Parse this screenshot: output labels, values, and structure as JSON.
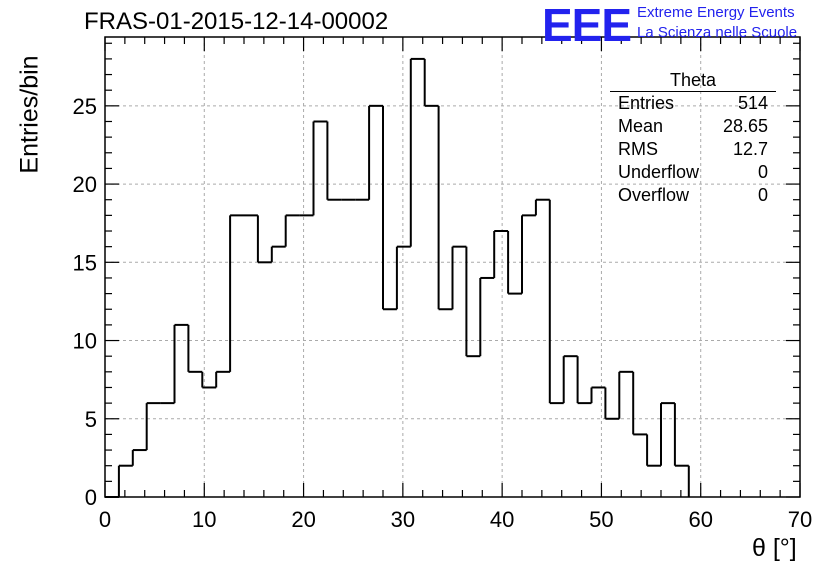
{
  "title": "FRAS-01-2015-12-14-00002",
  "logo": {
    "mark": "EEE",
    "line1": "Extreme Energy Events",
    "line2": "La Scienza nelle Scuole",
    "color": "#2222ee"
  },
  "stats": {
    "title": "Theta",
    "rows": [
      {
        "label": "Entries",
        "value": "514"
      },
      {
        "label": "Mean",
        "value": "28.65"
      },
      {
        "label": "RMS",
        "value": "12.7"
      },
      {
        "label": "Underflow",
        "value": "0"
      },
      {
        "label": "Overflow",
        "value": "0"
      }
    ]
  },
  "chart_data": {
    "type": "bar",
    "histogram": true,
    "title": "FRAS-01-2015-12-14-00002",
    "xlabel": "θ [°]",
    "ylabel": "Entries/bin",
    "xlim": [
      0,
      70
    ],
    "ylim": [
      0,
      29.4
    ],
    "xticks": [
      0,
      10,
      20,
      30,
      40,
      50,
      60,
      70
    ],
    "yticks": [
      0,
      5,
      10,
      15,
      20,
      25
    ],
    "grid": true,
    "line_color": "#000000",
    "bins": {
      "edges": [
        0,
        1.4,
        2.8,
        4.2,
        5.6,
        7.0,
        8.4,
        9.8,
        11.2,
        12.6,
        14.0,
        15.4,
        16.8,
        18.2,
        19.6,
        21.0,
        22.4,
        23.8,
        25.2,
        26.6,
        28.0,
        29.4,
        30.8,
        32.2,
        33.6,
        35.0,
        36.4,
        37.8,
        39.2,
        40.6,
        42.0,
        43.4,
        44.8,
        46.2,
        47.6,
        49.0,
        50.4,
        51.8,
        53.2,
        54.6,
        56.0,
        57.4,
        58.8
      ],
      "values": [
        0,
        2,
        3,
        6,
        6,
        11,
        8,
        7,
        8,
        18,
        18,
        15,
        16,
        18,
        18,
        24,
        19,
        19,
        19,
        25,
        12,
        16,
        28,
        25,
        12,
        16,
        9,
        14,
        17,
        13,
        18,
        19,
        6,
        9,
        6,
        7,
        5,
        8,
        4,
        2,
        6,
        2
      ]
    }
  }
}
